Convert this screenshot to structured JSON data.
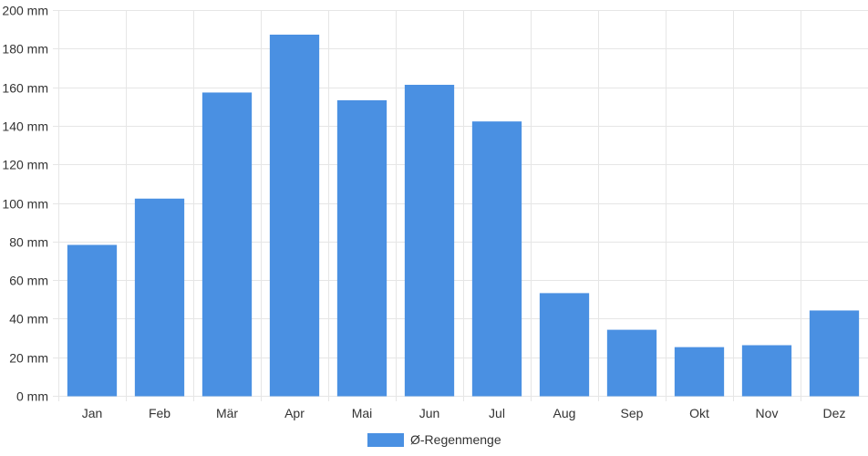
{
  "chart_data": {
    "type": "bar",
    "categories": [
      "Jan",
      "Feb",
      "Mär",
      "Apr",
      "Mai",
      "Jun",
      "Jul",
      "Aug",
      "Sep",
      "Okt",
      "Nov",
      "Dez"
    ],
    "series": [
      {
        "name": "Ø-Regenmenge",
        "values": [
          78,
          102,
          157,
          187,
          153,
          161,
          142,
          53,
          34,
          25,
          26,
          44
        ],
        "color": "#4a90e2"
      }
    ],
    "y_ticks": [
      "0 mm",
      "20 mm",
      "40 mm",
      "60 mm",
      "80 mm",
      "100 mm",
      "120 mm",
      "140 mm",
      "160 mm",
      "180 mm",
      "200 mm"
    ],
    "ylim": [
      0,
      200
    ],
    "y_unit": "mm",
    "grid": true,
    "legend_position": "bottom-center",
    "colors": {
      "bar": "#4a90e2",
      "grid": "#e6e6e6",
      "text": "#333333"
    }
  }
}
